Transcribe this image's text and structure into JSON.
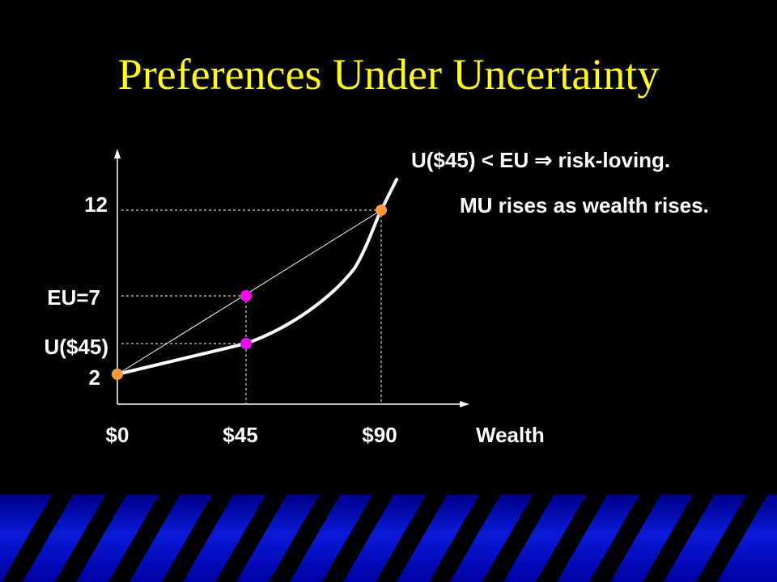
{
  "title": "Preferences Under Uncertainty",
  "diagram": {
    "y_labels": {
      "top": "12",
      "eu": "EU=7",
      "u45": "U($45)",
      "bottom": "2"
    },
    "x_labels": {
      "zero": "$0",
      "mid": "$45",
      "high": "$90",
      "axis": "Wealth"
    },
    "colors": {
      "title": "#ffff00",
      "endpoint_dot": "#ff9933",
      "interior_dot": "#ff00ff",
      "curve": "#ffffff",
      "background": "#000000",
      "band": "#0a1ad8"
    }
  },
  "notes": {
    "risk": "U($45) < EU ⇒ risk-loving.",
    "mu": "MU rises as wealth rises."
  }
}
